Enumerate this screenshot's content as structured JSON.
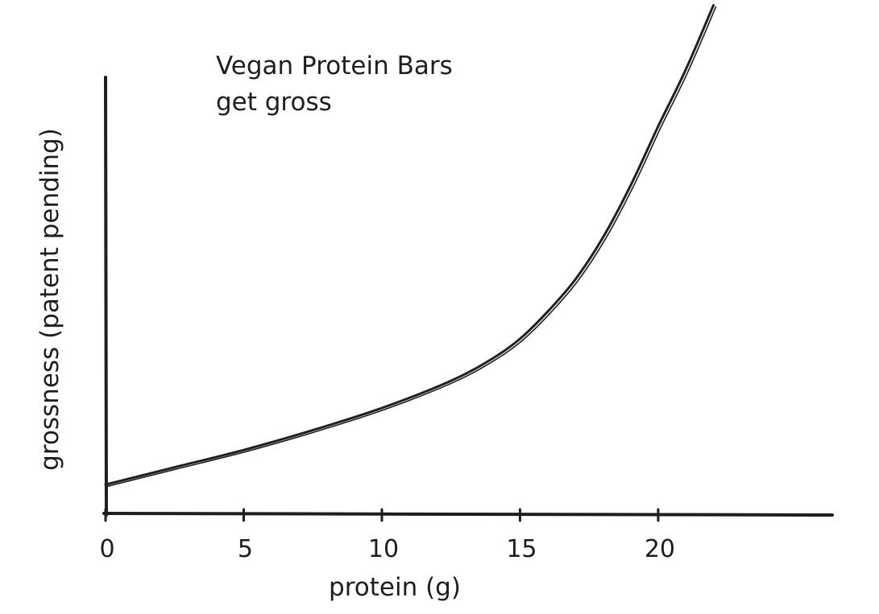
{
  "chart_data": {
    "type": "line",
    "title_lines": [
      "Vegan Protein Bars",
      "get gross"
    ],
    "xlabel": "protein (g)",
    "ylabel": "grossness (patent pending)",
    "x_ticks": [
      0,
      5,
      10,
      15,
      20
    ],
    "x_tick_labels": [
      "0",
      "5",
      "10",
      "15",
      "20"
    ],
    "xlim": [
      0,
      26.3
    ],
    "ylim": [
      0,
      100
    ],
    "grid": false,
    "legend": "none",
    "stroke_color": "#1e1e1e",
    "series": [
      {
        "x": [
          0,
          2.5,
          5,
          7.5,
          10,
          12.5,
          14,
          15,
          16,
          17,
          18,
          19,
          20,
          21,
          22
        ],
        "y": [
          6,
          9.5,
          13,
          17,
          21.5,
          27,
          31.5,
          35.5,
          41,
          47.5,
          56,
          66.5,
          78.5,
          90,
          103
        ]
      }
    ]
  }
}
